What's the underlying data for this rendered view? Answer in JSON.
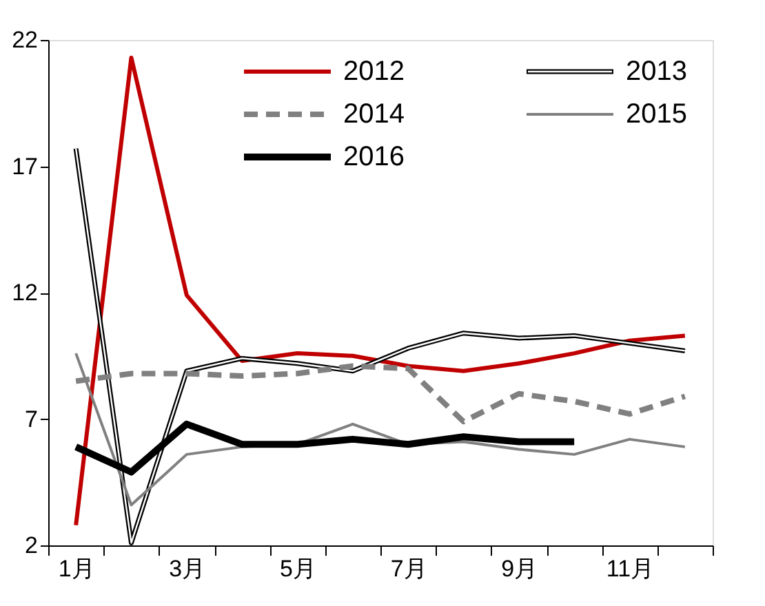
{
  "chart_data": {
    "type": "line",
    "categories": [
      "1月",
      null,
      "3月",
      null,
      "5月",
      null,
      "7月",
      null,
      "9月",
      null,
      "11月",
      null
    ],
    "ylim": [
      2,
      22
    ],
    "yticks": [
      2,
      7,
      12,
      17,
      22
    ],
    "grid": false,
    "legend": "top right",
    "marker": "none",
    "series": [
      {
        "name": "2012",
        "color": "#c00000",
        "values": [
          2.8,
          21.3,
          11.9,
          9.3,
          9.6,
          9.5,
          9.1,
          8.9,
          9.2,
          9.6,
          10.1,
          10.3
        ]
      },
      {
        "name": "2013",
        "color": "#000000",
        "values": [
          17.7,
          2.1,
          8.9,
          9.4,
          9.2,
          8.9,
          9.8,
          10.4,
          10.2,
          10.3,
          10.0,
          9.7
        ]
      },
      {
        "name": "2014",
        "color": "#808080",
        "line_style": "dashed",
        "values": [
          8.5,
          8.8,
          8.8,
          8.7,
          8.8,
          9.1,
          9.0,
          6.9,
          8.0,
          7.7,
          7.2,
          7.9
        ]
      },
      {
        "name": "2015",
        "color": "#808080",
        "values": [
          9.6,
          3.6,
          5.6,
          5.9,
          6.0,
          6.8,
          6.0,
          6.1,
          5.8,
          5.6,
          6.2,
          5.9
        ]
      },
      {
        "name": "2016",
        "color": "#000000",
        "values": [
          5.9,
          4.9,
          6.8,
          6.0,
          6.0,
          6.2,
          6.0,
          6.3,
          6.1,
          6.1,
          null,
          null
        ]
      }
    ]
  }
}
